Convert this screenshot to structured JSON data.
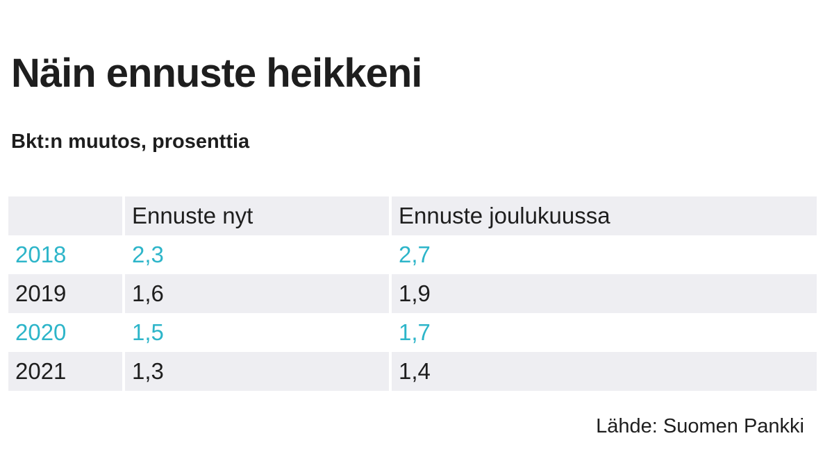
{
  "header": {
    "title": "Näin ennuste heikkeni",
    "subtitle": "Bkt:n muutos, prosenttia"
  },
  "table": {
    "columns": [
      "",
      "Ennuste nyt",
      "Ennuste joulukuussa"
    ],
    "rows": [
      [
        "2018",
        "2,3",
        "2,7"
      ],
      [
        "2019",
        "1,6",
        "1,9"
      ],
      [
        "2020",
        "1,5",
        "1,7"
      ],
      [
        "2021",
        "1,3",
        "1,4"
      ]
    ]
  },
  "source": "Lähde: Suomen Pankki"
}
